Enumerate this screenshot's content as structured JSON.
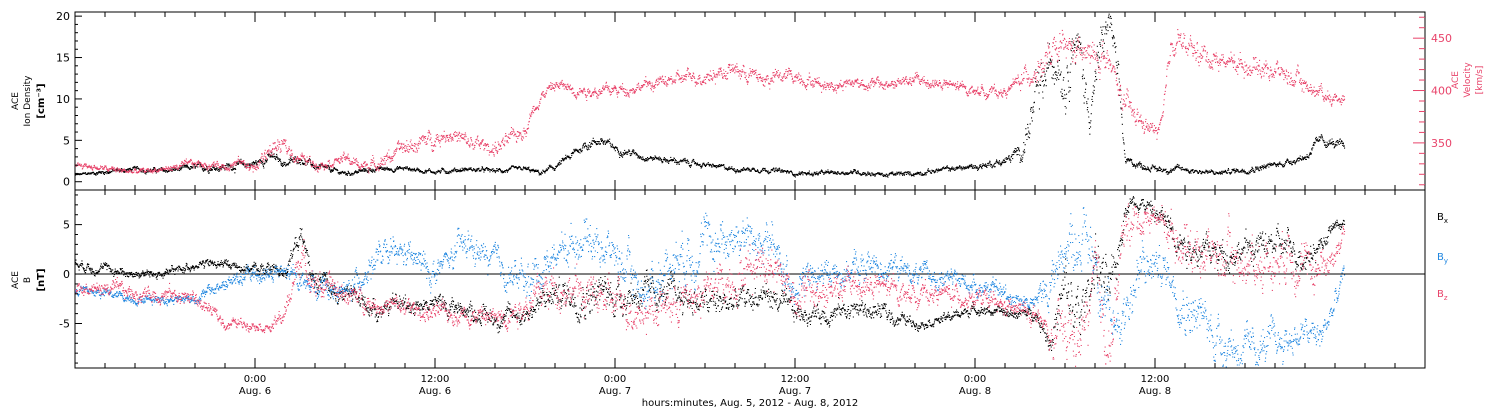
{
  "chart_data": [
    {
      "type": "scatter",
      "panel": "top",
      "ylabel_left": [
        "ACE",
        "Ion Density",
        "[cm⁻³]"
      ],
      "ylabel_right": [
        "ACE",
        "Velocity",
        "[km/s]"
      ],
      "ylim_left": [
        -1,
        20.5
      ],
      "yticks_left": [
        0,
        5,
        10,
        15,
        20
      ],
      "ylim_right": [
        305,
        475
      ],
      "yticks_right": [
        350,
        400,
        450
      ],
      "series": [
        {
          "axis": "left",
          "color": "#000000",
          "x": [
            0,
            2,
            4,
            6,
            8,
            10,
            11,
            12,
            13,
            14,
            15,
            16,
            18,
            20,
            22,
            24,
            26,
            28,
            30,
            31,
            32,
            33,
            34,
            35,
            36,
            38,
            40,
            42,
            44,
            46,
            48,
            50,
            52,
            54,
            56,
            58,
            60,
            62,
            63,
            64,
            65,
            65.5,
            66,
            66.5,
            67,
            67.5,
            68,
            68.5,
            69,
            69.5,
            70,
            71,
            72,
            74,
            76,
            78,
            80,
            81,
            82,
            83,
            84,
            84.6
          ],
          "y": [
            0.8,
            1.2,
            1.5,
            1.3,
            1.7,
            1.8,
            2.0,
            2.2,
            3.0,
            2.2,
            2.8,
            1.8,
            1.0,
            1.5,
            1.6,
            1.2,
            1.5,
            1.3,
            1.5,
            1.0,
            1.8,
            3.0,
            4.5,
            5.0,
            4.0,
            3.0,
            2.5,
            2.0,
            1.5,
            1.5,
            1.0,
            1.0,
            1.2,
            0.8,
            1.0,
            1.5,
            1.8,
            2.5,
            3.5,
            9,
            14,
            16,
            12,
            18,
            15,
            9,
            12,
            17,
            19.5,
            12,
            2.5,
            2.0,
            1.5,
            1.5,
            1.0,
            1.5,
            2.0,
            2.5,
            3.0,
            5.0,
            4.5,
            4.0
          ],
          "scatter": [
            0.15,
            0.3,
            0.3,
            0.3,
            0.4,
            0.5,
            0.5,
            0.5,
            0.6,
            0.5,
            0.5,
            0.4,
            0.3,
            0.3,
            0.3,
            0.3,
            0.3,
            0.3,
            0.3,
            0.3,
            0.4,
            0.5,
            0.6,
            0.6,
            0.5,
            0.4,
            0.4,
            0.3,
            0.3,
            0.3,
            0.3,
            0.3,
            0.3,
            0.3,
            0.3,
            0.3,
            0.4,
            0.5,
            1.0,
            3.0,
            3.0,
            3.0,
            3.0,
            3.0,
            3.0,
            3.0,
            3.0,
            3.0,
            2.0,
            2.0,
            0.5,
            0.4,
            0.4,
            0.4,
            0.3,
            0.4,
            0.4,
            0.4,
            0.5,
            0.6,
            0.6,
            0.6
          ]
        },
        {
          "axis": "right",
          "color": "#e8436a",
          "x": [
            0,
            2,
            4,
            6,
            8,
            10,
            11,
            12,
            13,
            14,
            15,
            16,
            18,
            19,
            20,
            22,
            24,
            25,
            26,
            28,
            29,
            30,
            31,
            32,
            34,
            36,
            38,
            40,
            42,
            44,
            46,
            48,
            50,
            52,
            54,
            56,
            58,
            60,
            62,
            63,
            64,
            65,
            66,
            67,
            68,
            68.5,
            69,
            70,
            71,
            72,
            72.5,
            73,
            73.5,
            74,
            76,
            78,
            80,
            82,
            83,
            84,
            84.6
          ],
          "y": [
            330,
            325,
            322,
            325,
            330,
            328,
            332,
            325,
            345,
            345,
            335,
            330,
            335,
            328,
            330,
            345,
            355,
            360,
            350,
            345,
            352,
            365,
            395,
            405,
            400,
            400,
            405,
            410,
            415,
            420,
            410,
            415,
            405,
            408,
            405,
            410,
            405,
            400,
            398,
            410,
            420,
            430,
            440,
            435,
            430,
            435,
            420,
            385,
            370,
            360,
            370,
            440,
            455,
            440,
            430,
            425,
            420,
            405,
            398,
            392,
            395
          ],
          "scatter": [
            3,
            3,
            3,
            3,
            4,
            4,
            4,
            5,
            10,
            8,
            6,
            5,
            5,
            5,
            6,
            8,
            8,
            8,
            8,
            8,
            8,
            8,
            6,
            6,
            6,
            6,
            6,
            6,
            8,
            8,
            8,
            8,
            6,
            6,
            6,
            6,
            6,
            5,
            5,
            8,
            12,
            15,
            15,
            15,
            15,
            15,
            15,
            12,
            8,
            8,
            8,
            12,
            12,
            12,
            10,
            10,
            10,
            8,
            8,
            6,
            6
          ]
        }
      ]
    },
    {
      "type": "scatter",
      "panel": "bottom",
      "ylabel_left": [
        "ACE",
        "B",
        "[nT]"
      ],
      "ylim_left": [
        -9.5,
        8.5
      ],
      "yticks_left": [
        -5,
        0,
        5
      ],
      "series": [
        {
          "name": "Bx",
          "color": "#000000",
          "x": [
            0,
            2,
            4,
            6,
            8,
            10,
            12,
            14,
            14.5,
            15,
            16,
            18,
            20,
            22,
            24,
            26,
            28,
            30,
            32,
            34,
            36,
            38,
            40,
            42,
            44,
            46,
            48,
            50,
            52,
            54,
            56,
            58,
            60,
            62,
            64,
            65,
            66,
            67,
            68,
            69,
            70,
            71,
            72,
            73,
            74,
            76,
            78,
            80,
            82,
            83,
            84,
            84.6
          ],
          "y": [
            1.0,
            0.5,
            0.0,
            0.0,
            1.0,
            1.0,
            0.5,
            0.5,
            2.0,
            4.0,
            -1.0,
            -2.0,
            -3.5,
            -3.0,
            -3.0,
            -3.5,
            -4.5,
            -4.0,
            -2.0,
            -2.0,
            -2.0,
            -2.0,
            -2.0,
            -3.0,
            -3.0,
            -2.0,
            -4.0,
            -4.0,
            -3.5,
            -4.0,
            -5.0,
            -4.5,
            -3.5,
            -4.0,
            -4.0,
            -6.5,
            -2.0,
            -5.0,
            2.0,
            -3.0,
            7.0,
            7.5,
            6.0,
            5.0,
            3.0,
            2.0,
            2.5,
            3.0,
            2.0,
            3.0,
            5.0,
            5.0
          ],
          "scatter": [
            0.5,
            0.5,
            0.5,
            0.5,
            0.5,
            0.5,
            0.5,
            0.8,
            1.0,
            1.0,
            1.0,
            1.0,
            1.0,
            1.0,
            1.0,
            1.0,
            1.0,
            1.0,
            1.5,
            2.0,
            2.0,
            1.5,
            1.5,
            1.5,
            1.5,
            1.5,
            1.0,
            1.0,
            1.0,
            1.0,
            0.5,
            0.5,
            0.5,
            0.5,
            0.5,
            1.5,
            3.0,
            3.0,
            3.0,
            3.0,
            1.0,
            0.8,
            1.0,
            1.5,
            1.5,
            1.5,
            1.5,
            1.5,
            1.5,
            1.0,
            0.6,
            0.5
          ]
        },
        {
          "name": "By",
          "color": "#1f86e0",
          "x": [
            0,
            2,
            4,
            6,
            8,
            10,
            12,
            14,
            16,
            18,
            20,
            22,
            24,
            26,
            28,
            30,
            32,
            34,
            36,
            38,
            40,
            42,
            44,
            46,
            48,
            50,
            52,
            54,
            56,
            58,
            60,
            62,
            64,
            65,
            66,
            67,
            68,
            69,
            70,
            71,
            72,
            73,
            74,
            76,
            78,
            80,
            82,
            83,
            84,
            84.6
          ],
          "y": [
            -1.5,
            -2.0,
            -2.5,
            -2.5,
            -2.5,
            -1.0,
            0.0,
            0.0,
            -1.0,
            -2.0,
            1.5,
            2.0,
            0.0,
            3.0,
            1.0,
            -1.0,
            2.0,
            4.0,
            2.0,
            -2.0,
            2.0,
            3.0,
            4.0,
            3.0,
            -1.0,
            0.0,
            0.5,
            1.0,
            0.0,
            -0.5,
            -1.0,
            -2.0,
            -3.0,
            -1.0,
            3.0,
            4.0,
            2.0,
            -6.0,
            -3.0,
            0.0,
            1.0,
            0.0,
            -3.0,
            -6.0,
            -8.0,
            -7.0,
            -6.0,
            -6.5,
            -3.0,
            0.0
          ],
          "scatter": [
            0.5,
            0.5,
            0.5,
            0.5,
            0.5,
            0.8,
            1.0,
            1.0,
            1.0,
            1.0,
            1.5,
            1.5,
            1.5,
            1.5,
            1.5,
            2.0,
            2.0,
            2.0,
            2.0,
            2.0,
            2.5,
            2.5,
            2.5,
            2.5,
            2.0,
            1.5,
            1.5,
            1.5,
            1.0,
            1.0,
            1.0,
            1.0,
            1.0,
            2.0,
            3.0,
            3.0,
            3.0,
            3.0,
            3.0,
            3.0,
            2.0,
            2.0,
            2.5,
            2.5,
            2.0,
            2.0,
            1.5,
            1.5,
            1.5,
            1.0
          ]
        },
        {
          "name": "Bz",
          "color": "#e8436a",
          "x": [
            0,
            2,
            4,
            6,
            8,
            10,
            12,
            13,
            14,
            15,
            16,
            18,
            20,
            22,
            24,
            26,
            28,
            30,
            32,
            34,
            36,
            38,
            40,
            42,
            44,
            46,
            48,
            50,
            52,
            54,
            56,
            58,
            60,
            62,
            64,
            65,
            66,
            67,
            68,
            69,
            70,
            71,
            72,
            74,
            76,
            78,
            80,
            81,
            82,
            84,
            84.6
          ],
          "y": [
            -1.5,
            -1.5,
            -2.0,
            -2.0,
            -2.5,
            -5.0,
            -5.0,
            -5.5,
            -4.0,
            2.0,
            -1.0,
            -2.0,
            -3.0,
            -3.5,
            -4.0,
            -4.0,
            -4.5,
            -3.0,
            -1.0,
            -2.0,
            -3.0,
            -3.5,
            -3.0,
            -2.0,
            0.0,
            2.0,
            -2.0,
            -2.0,
            -1.0,
            -1.5,
            -2.0,
            -2.0,
            -2.5,
            -3.5,
            -4.0,
            -7.0,
            -6.0,
            -7.0,
            -1.0,
            -7.5,
            5.0,
            5.5,
            6.0,
            3.0,
            2.0,
            1.0,
            1.5,
            3.0,
            0.0,
            2.0,
            4.5
          ],
          "scatter": [
            0.8,
            0.8,
            0.8,
            0.8,
            0.8,
            0.6,
            0.5,
            0.5,
            1.0,
            1.5,
            1.5,
            1.0,
            1.0,
            1.0,
            1.0,
            1.0,
            1.0,
            1.5,
            2.0,
            2.0,
            2.0,
            2.0,
            2.0,
            2.0,
            2.5,
            2.5,
            2.0,
            2.0,
            1.5,
            1.5,
            1.0,
            1.0,
            1.0,
            1.0,
            1.0,
            2.0,
            3.0,
            3.0,
            3.0,
            3.0,
            2.5,
            1.5,
            1.5,
            2.5,
            2.5,
            2.5,
            2.5,
            2.5,
            2.5,
            1.5,
            1.0
          ]
        }
      ]
    }
  ],
  "x_axis": {
    "xlim": [
      0,
      90
    ],
    "major_ticks": [
      {
        "x": 12,
        "label": "0:00",
        "sublabel": "Aug. 6"
      },
      {
        "x": 24,
        "label": "12:00",
        "sublabel": "Aug. 6"
      },
      {
        "x": 36,
        "label": "0:00",
        "sublabel": "Aug. 7"
      },
      {
        "x": 48,
        "label": "12:00",
        "sublabel": "Aug. 7"
      },
      {
        "x": 60,
        "label": "0:00",
        "sublabel": "Aug. 8"
      },
      {
        "x": 72,
        "label": "12:00",
        "sublabel": "Aug. 8"
      }
    ],
    "minor_tick_step": 2,
    "xlabel": "hours:minutes, Aug.  5, 2012 - Aug.  8, 2012"
  },
  "legend": {
    "entries": [
      {
        "base": "B",
        "sub": "x",
        "color": "#000000"
      },
      {
        "base": "B",
        "sub": "y",
        "color": "#1f86e0"
      },
      {
        "base": "B",
        "sub": "z",
        "color": "#e8436a"
      }
    ]
  },
  "colors": {
    "axis": "#000000",
    "velocity": "#e8436a"
  }
}
